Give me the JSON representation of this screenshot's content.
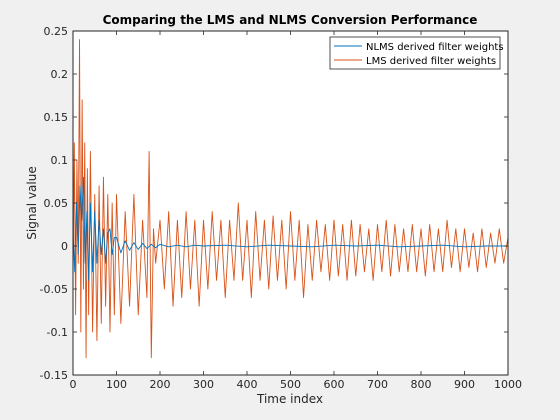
{
  "chart_data": {
    "type": "line",
    "title": "Comparing the LMS and NLMS Conversion Performance",
    "xlabel": "Time index",
    "ylabel": "Signal value",
    "xlim": [
      0,
      1000
    ],
    "ylim": [
      -0.15,
      0.25
    ],
    "xticks": [
      0,
      100,
      200,
      300,
      400,
      500,
      600,
      700,
      800,
      900,
      1000
    ],
    "xtick_labels": [
      "0",
      "100",
      "200",
      "300",
      "400",
      "500",
      "600",
      "700",
      "800",
      "900",
      "1000"
    ],
    "yticks": [
      -0.15,
      -0.1,
      -0.05,
      0,
      0.05,
      0.1,
      0.15,
      0.2,
      0.25
    ],
    "ytick_labels": [
      "-0.15",
      "-0.1",
      "-0.05",
      "0",
      "0.05",
      "0.1",
      "0.15",
      "0.2",
      "0.25"
    ],
    "grid": false,
    "legend_position": "top-right",
    "series": [
      {
        "name": "NLMS derived filter weights",
        "color": "#0072bd",
        "x": [
          0,
          4,
          8,
          12,
          16,
          20,
          24,
          28,
          32,
          36,
          40,
          45,
          50,
          55,
          60,
          65,
          70,
          75,
          80,
          85,
          90,
          95,
          100,
          110,
          120,
          130,
          140,
          150,
          160,
          170,
          180,
          190,
          200,
          220,
          240,
          260,
          280,
          300,
          350,
          400,
          450,
          500,
          550,
          600,
          650,
          700,
          750,
          800,
          850,
          900,
          950,
          1000
        ],
        "y": [
          0.02,
          -0.03,
          0.05,
          -0.01,
          0.07,
          0.03,
          0.08,
          -0.02,
          0.04,
          -0.04,
          0.05,
          -0.03,
          0.04,
          -0.02,
          0.03,
          -0.01,
          0.02,
          -0.02,
          0.015,
          0.02,
          -0.01,
          0.01,
          0.01,
          -0.008,
          0.006,
          -0.005,
          0.004,
          -0.004,
          0.003,
          -0.003,
          0.002,
          -0.002,
          0.002,
          -0.001,
          0.001,
          -0.001,
          0.001,
          0.0,
          0.001,
          -0.001,
          0.001,
          0.0,
          -0.001,
          0.001,
          0.0,
          0.001,
          -0.001,
          0.0,
          0.001,
          -0.001,
          0.0,
          0.0
        ]
      },
      {
        "name": "LMS derived filter weights",
        "color": "#d95319",
        "x": [
          0,
          3,
          6,
          9,
          12,
          15,
          18,
          21,
          24,
          27,
          30,
          33,
          36,
          40,
          45,
          50,
          55,
          60,
          65,
          70,
          75,
          80,
          85,
          90,
          95,
          100,
          110,
          120,
          130,
          140,
          150,
          160,
          170,
          175,
          180,
          185,
          190,
          200,
          210,
          220,
          230,
          240,
          250,
          260,
          270,
          280,
          290,
          300,
          310,
          320,
          330,
          340,
          350,
          360,
          370,
          380,
          390,
          400,
          410,
          420,
          430,
          440,
          450,
          460,
          470,
          480,
          490,
          500,
          510,
          520,
          530,
          540,
          550,
          560,
          570,
          580,
          590,
          600,
          610,
          620,
          630,
          640,
          650,
          660,
          670,
          680,
          690,
          700,
          710,
          720,
          730,
          740,
          750,
          760,
          770,
          780,
          790,
          800,
          810,
          820,
          830,
          840,
          850,
          860,
          870,
          880,
          890,
          900,
          910,
          920,
          930,
          940,
          950,
          960,
          970,
          980,
          990,
          1000
        ],
        "y": [
          -0.04,
          0.12,
          -0.08,
          0.1,
          -0.02,
          0.24,
          -0.1,
          0.17,
          -0.05,
          0.12,
          -0.13,
          0.09,
          -0.08,
          0.11,
          -0.1,
          0.06,
          -0.11,
          0.07,
          -0.09,
          0.08,
          -0.07,
          0.06,
          -0.1,
          0.05,
          -0.08,
          0.06,
          -0.09,
          0.04,
          -0.07,
          0.06,
          -0.08,
          0.03,
          -0.06,
          0.11,
          -0.13,
          0.02,
          -0.02,
          0.03,
          -0.05,
          0.04,
          -0.07,
          0.03,
          -0.06,
          0.04,
          -0.05,
          0.03,
          -0.07,
          0.03,
          -0.05,
          0.04,
          -0.04,
          0.03,
          -0.06,
          0.03,
          -0.04,
          0.05,
          -0.04,
          0.03,
          -0.06,
          0.04,
          -0.04,
          0.03,
          -0.05,
          0.035,
          -0.04,
          0.03,
          -0.05,
          0.04,
          -0.04,
          0.03,
          -0.06,
          0.025,
          -0.04,
          0.03,
          -0.03,
          0.025,
          -0.04,
          0.03,
          -0.035,
          0.025,
          -0.04,
          0.03,
          -0.035,
          0.025,
          -0.03,
          0.02,
          -0.04,
          0.025,
          -0.03,
          0.03,
          -0.035,
          0.025,
          -0.03,
          0.02,
          -0.03,
          0.025,
          -0.03,
          0.02,
          -0.035,
          0.025,
          -0.03,
          0.02,
          -0.03,
          0.03,
          -0.025,
          0.02,
          -0.03,
          0.02,
          -0.025,
          0.015,
          -0.03,
          0.02,
          -0.025,
          0.015,
          -0.02,
          0.02,
          -0.02,
          0.01
        ]
      }
    ]
  }
}
